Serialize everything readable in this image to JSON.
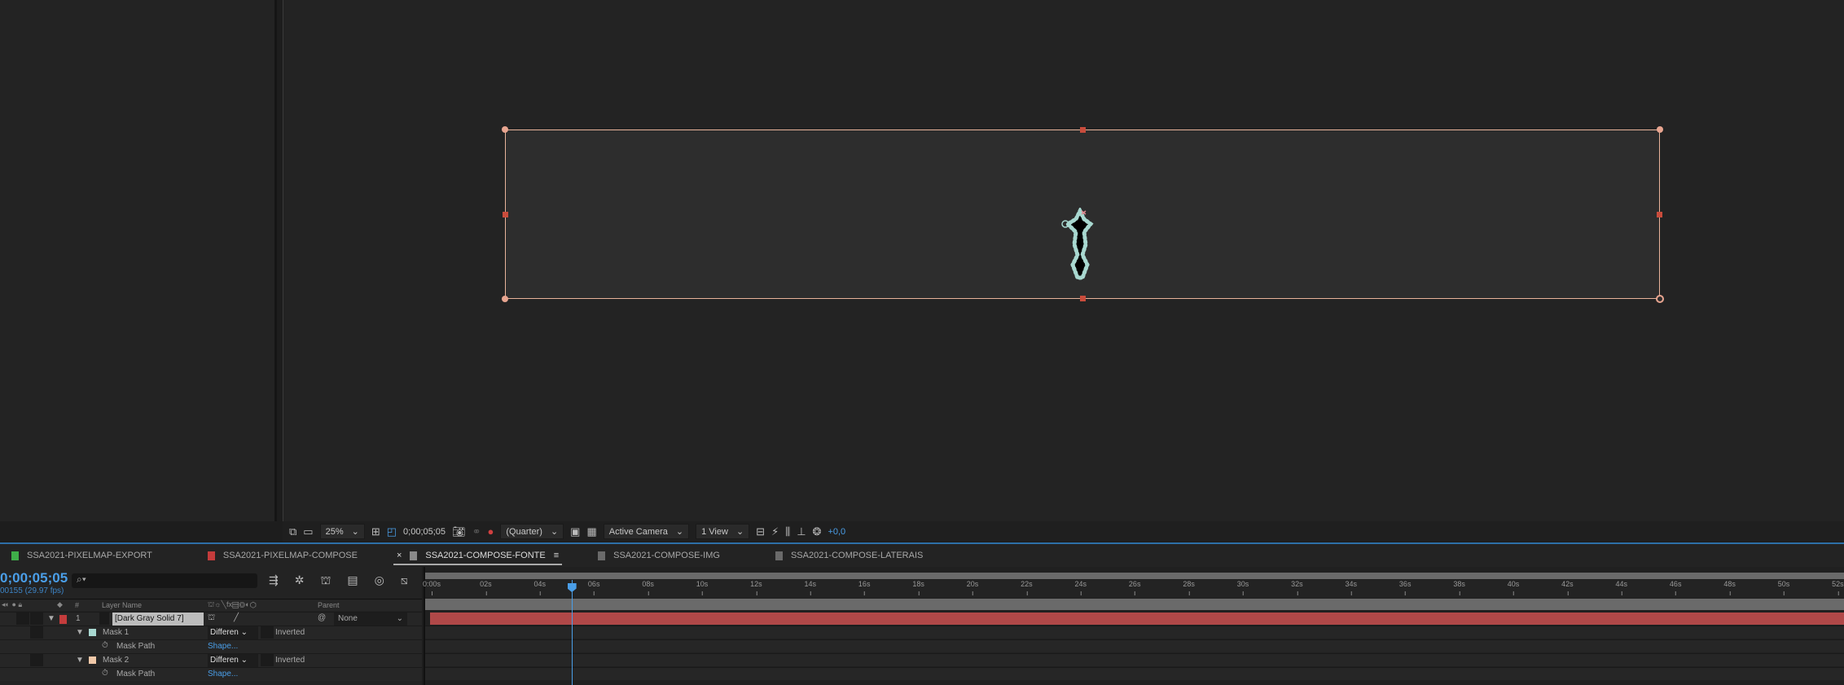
{
  "viewer_toolbar": {
    "zoom": "25%",
    "timecode": "0;00;05;05",
    "resolution": "(Quarter)",
    "camera": "Active Camera",
    "views": "1 View",
    "exposure": "+0,0"
  },
  "tabs": [
    {
      "label": "SSA2021-PIXELMAP-EXPORT",
      "color": "#3fae49"
    },
    {
      "label": "SSA2021-PIXELMAP-COMPOSE",
      "color": "#c43c3c"
    },
    {
      "label": "SSA2021-COMPOSE-FONTE",
      "color": "#8a8a8a",
      "active": true
    },
    {
      "label": "SSA2021-COMPOSE-IMG",
      "color": "#6a6a6a"
    },
    {
      "label": "SSA2021-COMPOSE-LATERAIS",
      "color": "#6a6a6a"
    }
  ],
  "timeline": {
    "timecode": "0;00;05;05",
    "frames": "00155 (29.97 fps)",
    "search_placeholder": "⌕▾",
    "columns": {
      "num": "#",
      "layer_name": "Layer Name",
      "parent": "Parent"
    },
    "ruler": [
      "0:00s",
      "02s",
      "04s",
      "06s",
      "08s",
      "10s",
      "12s",
      "14s",
      "16s",
      "18s",
      "20s",
      "22s",
      "24s",
      "26s",
      "28s",
      "30s",
      "32s",
      "34s",
      "36s",
      "38s",
      "40s",
      "42s",
      "44s",
      "46s",
      "48s",
      "50s",
      "52s"
    ],
    "current_time_seconds": 5.17,
    "layer": {
      "index": "1",
      "name": "[Dark Gray Solid 7]",
      "parent": "None",
      "label_color": "#c43c3c"
    },
    "masks": [
      {
        "name": "Mask 1",
        "mode": "Differen",
        "inverted": "Inverted",
        "property": "Mask Path",
        "value": "Shape...",
        "color": "#a8d8d0"
      },
      {
        "name": "Mask 2",
        "mode": "Differen",
        "inverted": "Inverted",
        "property": "Mask Path",
        "value": "Shape...",
        "color": "#f0c8a8"
      }
    ]
  }
}
